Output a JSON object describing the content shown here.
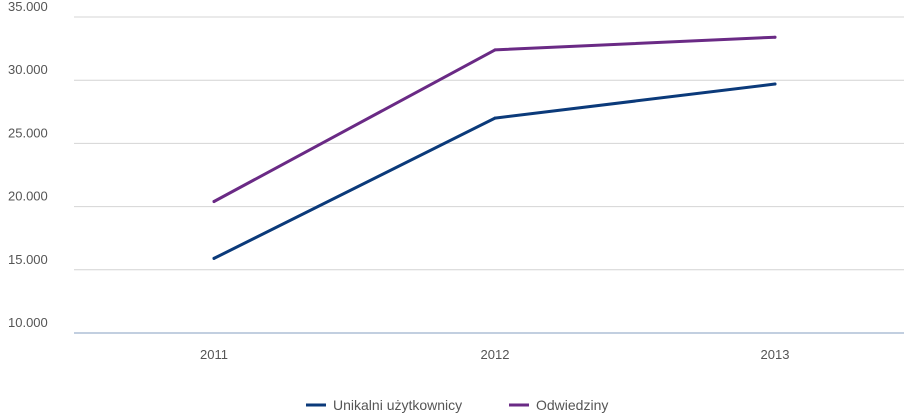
{
  "chart_data": {
    "type": "line",
    "title": "",
    "xlabel": "",
    "ylabel": "",
    "categories": [
      "2011",
      "2012",
      "2013"
    ],
    "ylim": [
      10000,
      35000
    ],
    "yticks": [
      10000,
      15000,
      20000,
      25000,
      30000,
      35000
    ],
    "ytick_labels": [
      "10.000",
      "15.000",
      "20.000",
      "25.000",
      "30.000",
      "35.000"
    ],
    "grid": true,
    "legend_position": "bottom",
    "series": [
      {
        "name": "Unikalni użytkownicy",
        "color": "#0b3a7a",
        "values": [
          15900,
          27000,
          29700
        ]
      },
      {
        "name": "Odwiedziny",
        "color": "#6a2a85",
        "values": [
          20400,
          32400,
          33400
        ]
      }
    ]
  }
}
